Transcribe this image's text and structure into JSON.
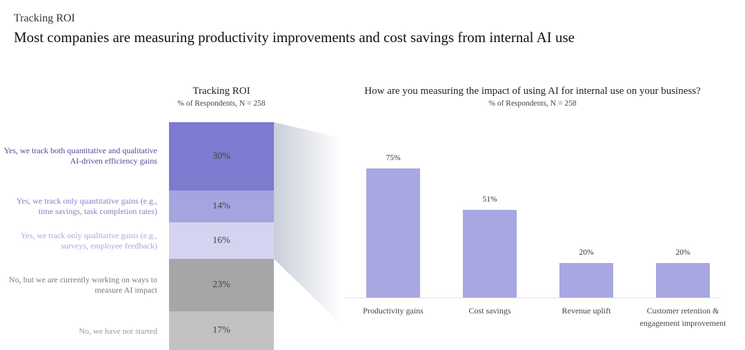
{
  "header": {
    "kicker": "Tracking ROI",
    "title": "Most companies are measuring productivity improvements and cost savings from internal AI use"
  },
  "chart_data": [
    {
      "type": "bar",
      "stacked": true,
      "title": "Tracking ROI",
      "subtitle": "% of Respondents, N = 258",
      "categories": [
        "Yes, we track both quantitative and qualitative AI-driven efficiency gains",
        "Yes, we track only quantitative gains (e.g., time savings, task completion rates)",
        "Yes, we track only qualitative gains (e.g., surveys, employee feedback)",
        "No, but we are currently working on ways to measure AI impact",
        "No, we have not started"
      ],
      "values": [
        30,
        14,
        16,
        23,
        17
      ],
      "labels": [
        "30%",
        "14%",
        "16%",
        "23%",
        "17%"
      ],
      "colors": [
        "#7b7bd0",
        "#a4a4e0",
        "#d4d4f0",
        "#a6a6a6",
        "#c2c2c2"
      ],
      "label_colors": [
        "#4a4a9e",
        "#7f7fc6",
        "#a9a9d9",
        "#7a7a7a",
        "#9a9a9a"
      ]
    },
    {
      "type": "bar",
      "title": "How are you measuring the impact of using AI for internal use on your business?",
      "subtitle": "% of Respondents, N = 258",
      "categories": [
        "Productivity gains",
        "Cost savings",
        "Revenue uplift",
        "Customer retention & engagement improvement"
      ],
      "values": [
        75,
        51,
        20,
        20
      ],
      "labels": [
        "75%",
        "51%",
        "20%",
        "20%"
      ],
      "color": "#a7a7e1",
      "ylim": [
        0,
        100
      ],
      "grid": false
    }
  ]
}
